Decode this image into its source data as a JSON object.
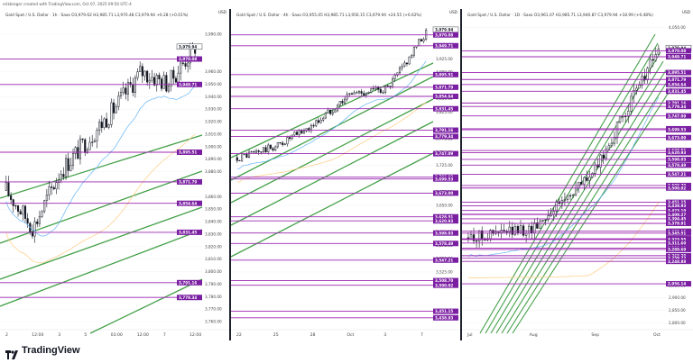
{
  "header": {
    "text": "erikbreger created with TradingView.com, Oct 07, 2025 09:50 UTC-4"
  },
  "footer": {
    "brand": "TradingView"
  },
  "colors": {
    "level": "#9c27b0",
    "level_label": "#7b1fa2",
    "trend": "#43a047",
    "up": "#ffffff",
    "down": "#131722",
    "ma_fast": "#64b5f6",
    "ma_slow": "#ffcc80"
  },
  "panels": [
    {
      "title": "Gold Spot / U.S. Dollar · 1h · Saxo  O3,979.62  H3,985.71  L3,970.48  C3,979.94  +0.28 (+0.01%)",
      "currency": "USD",
      "price_ticks": [
        "3,990.00",
        "3,960.00",
        "3,950.00",
        "3,940.00",
        "3,930.00",
        "3,920.00",
        "3,910.00",
        "3,900.00",
        "3,890.00",
        "3,880.00",
        "3,860.00",
        "3,850.00",
        "3,840.00",
        "3,830.00",
        "3,820.00",
        "3,810.00",
        "3,800.00",
        "3,790.00",
        "3,780.00",
        "3,770.00",
        "3,760.00"
      ],
      "tick_values": [
        3990,
        3960,
        3950,
        3940,
        3930,
        3920,
        3910,
        3900,
        3890,
        3880,
        3860,
        3850,
        3840,
        3830,
        3820,
        3810,
        3800,
        3790,
        3780,
        3770,
        3760
      ],
      "time_labels": [
        "2",
        "12:00",
        "3",
        "5",
        "03:00",
        "12:00",
        "7",
        "12:00"
      ],
      "levels": [
        {
          "label": "3,979.94",
          "value": 3979.94,
          "current": true
        },
        {
          "label": "3,970.08",
          "value": 3970.08
        },
        {
          "label": "3,949.71",
          "value": 3949.71
        },
        {
          "label": "3,895.51",
          "value": 3895.51
        },
        {
          "label": "3,871.79",
          "value": 3871.79
        },
        {
          "label": "3,854.64",
          "value": 3854.64
        },
        {
          "label": "3,831.45",
          "value": 3831.45
        },
        {
          "label": "3,791.16",
          "value": 3791.16
        },
        {
          "label": "3,779.34",
          "value": 3779.34
        }
      ]
    },
    {
      "title": "Gold Spot / U.S. Dollar · 4h · Saxo  O3,955.05  H3,985.71  L3,956.15  C3,979.94  +24.55 (+0.62%)",
      "currency": "USD",
      "price_ticks": [
        "3,975.00",
        "3,925.00",
        "3,900.00",
        "3,850.00",
        "3,825.00",
        "3,775.00",
        "3,750.00",
        "3,725.00",
        "3,675.00",
        "3,650.00",
        "3,625.00",
        "3,600.00",
        "3,575.00",
        "3,550.00",
        "3,525.00"
      ],
      "tick_values": [
        3975,
        3925,
        3900,
        3850,
        3825,
        3775,
        3750,
        3725,
        3675,
        3650,
        3625,
        3600,
        3575,
        3550,
        3525
      ],
      "time_labels": [
        "22",
        "25",
        "28",
        "Oct",
        "3",
        "7"
      ],
      "levels": [
        {
          "label": "3,979.94",
          "value": 3979.94,
          "current": true
        },
        {
          "label": "3,970.08",
          "value": 3970.08
        },
        {
          "label": "3,949.71",
          "value": 3949.71
        },
        {
          "label": "3,895.51",
          "value": 3895.51
        },
        {
          "label": "3,871.79",
          "value": 3871.79
        },
        {
          "label": "3,854.64",
          "value": 3854.64
        },
        {
          "label": "3,831.45",
          "value": 3831.45
        },
        {
          "label": "3,791.16",
          "value": 3791.16
        },
        {
          "label": "3,779.34",
          "value": 3779.34
        },
        {
          "label": "3,747.09",
          "value": 3747.09
        },
        {
          "label": "3,703.02",
          "value": 3703.02
        },
        {
          "label": "3,699.53",
          "value": 3699.53
        },
        {
          "label": "3,673.00",
          "value": 3673.0
        },
        {
          "label": "3,628.51",
          "value": 3628.51
        },
        {
          "label": "3,620.93",
          "value": 3620.93
        },
        {
          "label": "3,598.03",
          "value": 3598.03
        },
        {
          "label": "3,578.49",
          "value": 3578.49
        },
        {
          "label": "3,547.21",
          "value": 3547.21
        },
        {
          "label": "3,508.70",
          "value": 3508.7
        },
        {
          "label": "3,500.02",
          "value": 3500.02
        },
        {
          "label": "3,451.15",
          "value": 3451.15
        },
        {
          "label": "3,438.93",
          "value": 3438.93
        }
      ]
    },
    {
      "title": "Gold Spot / U.S. Dollar · 1D · Saxo  O3,961.07  H3,985.71  L3,940.87  C3,979.94  +18.99 (+0.48%)",
      "currency": "USD",
      "price_ticks": [
        "4,050.00",
        "2,950.00",
        "2,900.00",
        "2,850.00",
        "2,800.00"
      ],
      "tick_values": [
        4050,
        2950,
        2900,
        2850,
        2800
      ],
      "time_labels": [
        "Jul",
        "Aug",
        "Sep",
        "Oct"
      ],
      "levels": [
        {
          "label": "3,979.94",
          "value": 3979.94,
          "current": true
        },
        {
          "label": "3,970.08",
          "value": 3970.08
        },
        {
          "label": "3,949.71",
          "value": 3949.71
        },
        {
          "label": "3,895.51",
          "value": 3895.51
        },
        {
          "label": "3,871.79",
          "value": 3871.79
        },
        {
          "label": "3,854.64",
          "value": 3854.64
        },
        {
          "label": "3,831.45",
          "value": 3831.45
        },
        {
          "label": "3,791.16",
          "value": 3791.16
        },
        {
          "label": "3,779.34",
          "value": 3779.34
        },
        {
          "label": "3,747.09",
          "value": 3747.09
        },
        {
          "label": "3,703.02",
          "value": 3703.02
        },
        {
          "label": "3,699.53",
          "value": 3699.53
        },
        {
          "label": "3,673.00",
          "value": 3673.0
        },
        {
          "label": "3,628.51",
          "value": 3628.51
        },
        {
          "label": "3,620.93",
          "value": 3620.93
        },
        {
          "label": "3,598.03",
          "value": 3598.03
        },
        {
          "label": "3,578.49",
          "value": 3578.49
        },
        {
          "label": "3,547.21",
          "value": 3547.21
        },
        {
          "label": "3,508.70",
          "value": 3508.7
        },
        {
          "label": "3,500.02",
          "value": 3500.02
        },
        {
          "label": "3,451.15",
          "value": 3451.15
        },
        {
          "label": "3,438.93",
          "value": 3438.93
        },
        {
          "label": "3,423.10",
          "value": 3423.1
        },
        {
          "label": "3,410.50",
          "value": 3410.5
        },
        {
          "label": "3,409.27",
          "value": 3409.27
        },
        {
          "label": "3,394.45",
          "value": 3394.45
        },
        {
          "label": "3,378.91",
          "value": 3378.91
        },
        {
          "label": "3,352.18",
          "value": 3352.18
        },
        {
          "label": "3,345.51",
          "value": 3345.51
        },
        {
          "label": "3,326.38",
          "value": 3326.38
        },
        {
          "label": "3,323.55",
          "value": 3323.55
        },
        {
          "label": "3,311.60",
          "value": 3311.6
        },
        {
          "label": "3,293.99",
          "value": 3293.99
        },
        {
          "label": "3,289.69",
          "value": 3289.69
        },
        {
          "label": "3,268.29",
          "value": 3268.29
        },
        {
          "label": "3,259.72",
          "value": 3259.72
        },
        {
          "label": "3,248.88",
          "value": 3248.88
        },
        {
          "label": "2,956.14",
          "value": 2956.14
        }
      ]
    }
  ],
  "chart_data": [
    {
      "type": "line",
      "title": "Gold Spot / U.S. Dollar · 1h · Saxo",
      "x": [
        "2",
        "12:00",
        "3",
        "5",
        "03:00",
        "12:00",
        "7",
        "12:00"
      ],
      "series": [
        {
          "values": [
            3865,
            3835,
            3880,
            3905,
            3930,
            3960,
            3950,
            3980
          ]
        }
      ],
      "ylabel": "USD",
      "ylim": [
        3755,
        4000
      ]
    },
    {
      "type": "line",
      "title": "Gold Spot / U.S. Dollar · 4h · Saxo",
      "x": [
        "22",
        "25",
        "28",
        "Oct",
        "3",
        "7"
      ],
      "series": [
        {
          "values": [
            3740,
            3760,
            3800,
            3860,
            3870,
            3975
          ]
        }
      ],
      "ylabel": "USD",
      "ylim": [
        3420,
        3995
      ]
    },
    {
      "type": "line",
      "title": "Gold Spot / U.S. Dollar · 1D · Saxo",
      "x": [
        "Jul",
        "Aug",
        "Sep",
        "Oct"
      ],
      "series": [
        {
          "values": [
            3330,
            3360,
            3560,
            3980
          ]
        }
      ],
      "ylabel": "USD",
      "ylim": [
        2780,
        4070
      ]
    }
  ]
}
